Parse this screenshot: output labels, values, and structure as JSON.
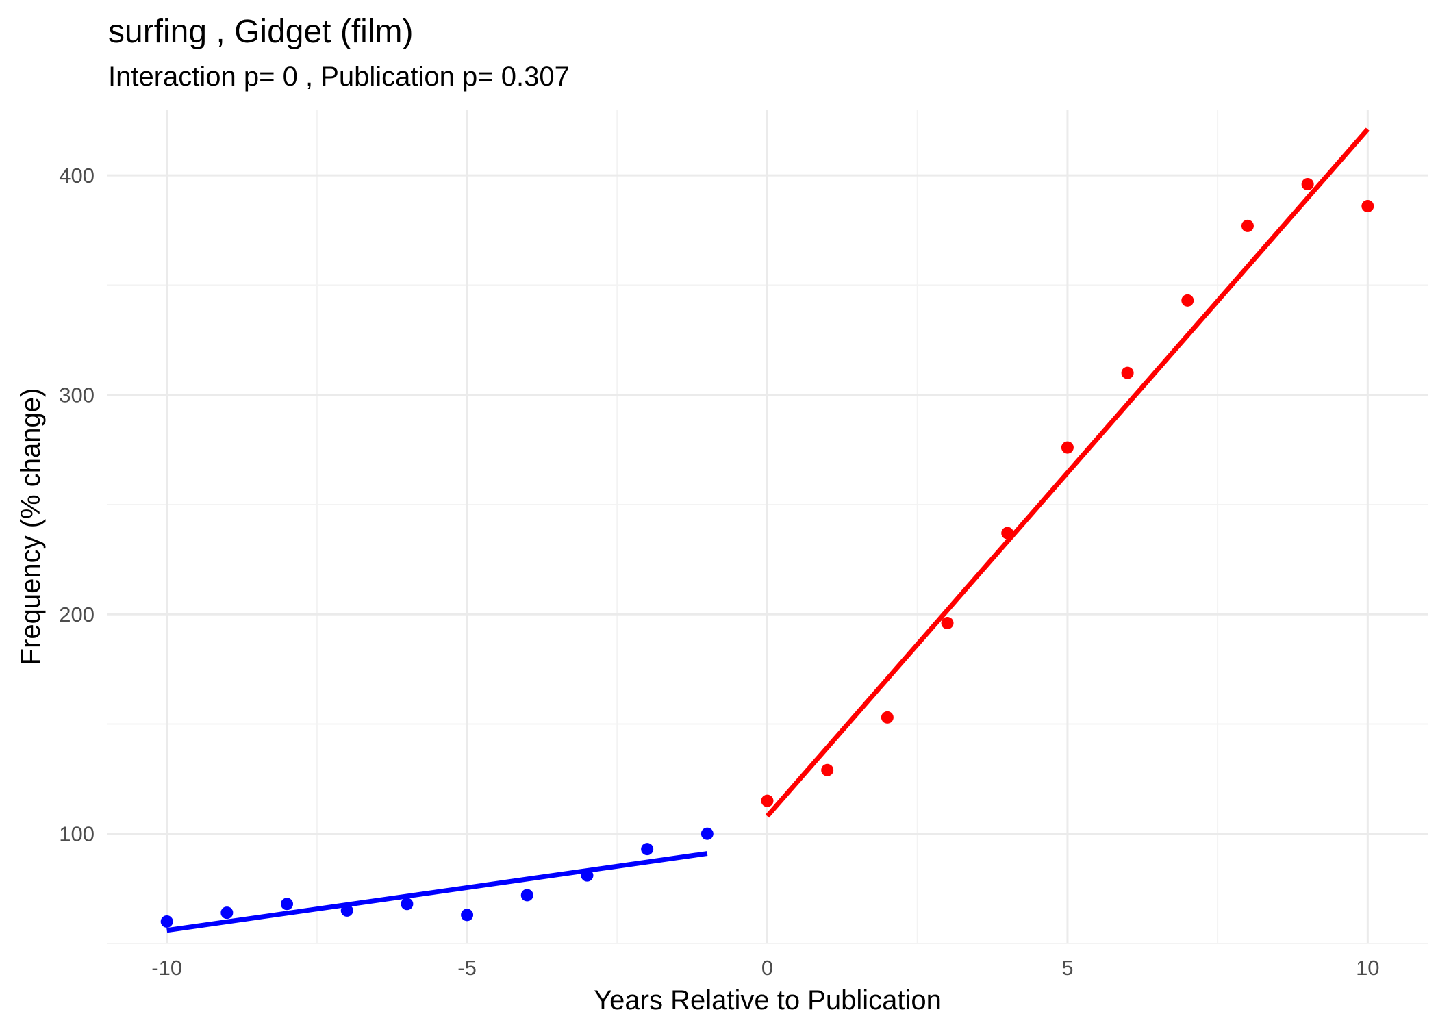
{
  "chart_data": {
    "type": "scatter",
    "title": "surfing ,  Gidget (film)",
    "subtitle": "Interaction p= 0 , Publication p= 0.307",
    "xlabel": "Years Relative to Publication",
    "ylabel": "Frequency (% change)",
    "xlim": [
      -11,
      11
    ],
    "ylim": [
      50,
      430
    ],
    "x_ticks": [
      -10,
      -5,
      0,
      5,
      10
    ],
    "y_ticks": [
      100,
      200,
      300,
      400
    ],
    "x_tick_labels": [
      "-10",
      "-5",
      "0",
      "5",
      "10"
    ],
    "y_tick_labels": [
      "100",
      "200",
      "300",
      "400"
    ],
    "grid": true,
    "series": [
      {
        "color": "#0000ff",
        "x": [
          -10,
          -9,
          -8,
          -7,
          -6,
          -5,
          -4,
          -3,
          -2,
          -1
        ],
        "y": [
          60,
          64,
          68,
          65,
          68,
          63,
          72,
          81,
          93,
          100
        ],
        "fit": {
          "x": [
            -10,
            -1
          ],
          "y": [
            56,
            91
          ]
        }
      },
      {
        "color": "#ff0000",
        "x": [
          0,
          1,
          2,
          3,
          4,
          5,
          6,
          7,
          8,
          9,
          10
        ],
        "y": [
          115,
          129,
          153,
          196,
          237,
          276,
          310,
          343,
          377,
          396,
          386
        ],
        "fit": {
          "x": [
            0,
            10
          ],
          "y": [
            108,
            421
          ]
        }
      }
    ]
  }
}
